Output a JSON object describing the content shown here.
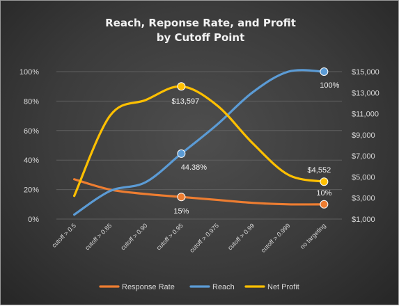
{
  "chart_data": {
    "type": "line",
    "title_lines": [
      "Reach, Reponse Rate, and Profit",
      "by Cutoff Point"
    ],
    "categories": [
      "cutoff > 0.5",
      "cutoff > 0.85",
      "cutoff > 0.90",
      "cutoff > 0.95",
      "cutoff > 0.975",
      "cutoff > 0.99",
      "cutoff > 0.999",
      "no targeting"
    ],
    "y_left": {
      "min": 0,
      "max": 1,
      "ticks": [
        "0%",
        "20%",
        "40%",
        "60%",
        "80%",
        "100%"
      ]
    },
    "y_right": {
      "min": 1000,
      "max": 15000,
      "ticks": [
        "$1,000",
        "$3,000",
        "$5,000",
        "$7,000",
        "$9,000",
        "$11,000",
        "$13,000",
        "$15,000"
      ]
    },
    "grid": true,
    "legend_position": "bottom",
    "series": [
      {
        "name": "Response Rate",
        "axis": "left",
        "color": "#ED7D31",
        "values": [
          0.27,
          0.2,
          0.17,
          0.15,
          0.13,
          0.11,
          0.1,
          0.1
        ],
        "markers": [
          {
            "index": 3,
            "label": "15%"
          },
          {
            "index": 7,
            "label": "10%"
          }
        ]
      },
      {
        "name": "Reach",
        "axis": "left",
        "color": "#5B9BD5",
        "values": [
          0.03,
          0.19,
          0.25,
          0.4438,
          0.64,
          0.86,
          1.0,
          1.0
        ],
        "markers": [
          {
            "index": 3,
            "label": "44.38%"
          },
          {
            "index": 7,
            "label": "100%"
          }
        ]
      },
      {
        "name": "Net Profit",
        "axis": "right",
        "color": "#FFC000",
        "values": [
          3200,
          10800,
          12300,
          13597,
          11800,
          8200,
          5200,
          4552
        ],
        "markers": [
          {
            "index": 3,
            "label": "$13,597"
          },
          {
            "index": 7,
            "label": "$4,552"
          }
        ]
      }
    ]
  }
}
